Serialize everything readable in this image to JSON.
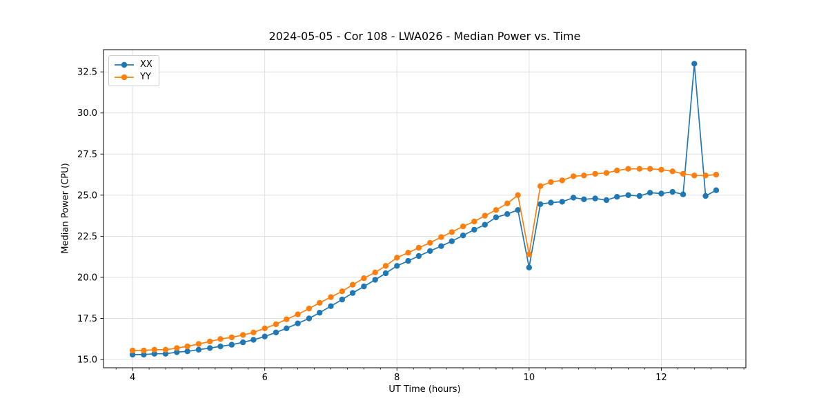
{
  "chart_data": {
    "type": "line",
    "title": "2024-05-05 - Cor 108 - LWA026 - Median Power vs. Time",
    "xlabel": "UT Time (hours)",
    "ylabel": "Median Power (CPU)",
    "xlim": [
      3.56,
      13.28
    ],
    "ylim": [
      14.5,
      33.85
    ],
    "xticks": [
      4,
      6,
      8,
      10,
      12
    ],
    "xtick_labels": [
      "4",
      "6",
      "8",
      "10",
      "12"
    ],
    "x_minor_step": 0.25,
    "yticks": [
      15.0,
      17.5,
      20.0,
      22.5,
      25.0,
      27.5,
      30.0,
      32.5
    ],
    "ytick_labels": [
      "15.0",
      "17.5",
      "20.0",
      "22.5",
      "25.0",
      "27.5",
      "30.0",
      "32.5"
    ],
    "grid": true,
    "grid_color": "#dcdcdc",
    "spine_color": "#000000",
    "legend_position": "upper-left",
    "x": [
      4.0,
      4.17,
      4.33,
      4.5,
      4.67,
      4.83,
      5.0,
      5.17,
      5.33,
      5.5,
      5.67,
      5.83,
      6.0,
      6.17,
      6.33,
      6.5,
      6.67,
      6.83,
      7.0,
      7.17,
      7.33,
      7.5,
      7.67,
      7.83,
      8.0,
      8.17,
      8.33,
      8.5,
      8.67,
      8.83,
      9.0,
      9.17,
      9.33,
      9.5,
      9.67,
      9.83,
      10.0,
      10.17,
      10.33,
      10.5,
      10.67,
      10.83,
      11.0,
      11.17,
      11.33,
      11.5,
      11.67,
      11.83,
      12.0,
      12.17,
      12.33,
      12.5,
      12.67,
      12.83
    ],
    "series": [
      {
        "name": "XX",
        "color": "#1f77b4",
        "values": [
          15.3,
          15.3,
          15.35,
          15.35,
          15.45,
          15.5,
          15.6,
          15.7,
          15.8,
          15.9,
          16.05,
          16.2,
          16.4,
          16.65,
          16.9,
          17.2,
          17.5,
          17.85,
          18.25,
          18.65,
          19.05,
          19.45,
          19.85,
          20.25,
          20.7,
          21.0,
          21.3,
          21.6,
          21.9,
          22.2,
          22.55,
          22.9,
          23.2,
          23.65,
          23.85,
          24.1,
          20.6,
          24.45,
          24.55,
          24.6,
          24.85,
          24.75,
          24.8,
          24.7,
          24.9,
          25.0,
          24.95,
          25.15,
          25.1,
          25.2,
          25.05,
          33.0,
          24.95,
          25.3
        ]
      },
      {
        "name": "YY",
        "color": "#ff7f0e",
        "values": [
          15.55,
          15.55,
          15.6,
          15.6,
          15.7,
          15.8,
          15.95,
          16.1,
          16.25,
          16.35,
          16.5,
          16.65,
          16.9,
          17.15,
          17.45,
          17.75,
          18.1,
          18.45,
          18.8,
          19.15,
          19.55,
          19.95,
          20.3,
          20.7,
          21.2,
          21.5,
          21.8,
          22.1,
          22.45,
          22.75,
          23.1,
          23.4,
          23.75,
          24.1,
          24.5,
          25.0,
          21.4,
          25.55,
          25.8,
          25.9,
          26.15,
          26.2,
          26.3,
          26.35,
          26.5,
          26.6,
          26.6,
          26.6,
          26.55,
          26.45,
          26.3,
          26.2,
          26.2,
          26.25
        ]
      }
    ]
  }
}
